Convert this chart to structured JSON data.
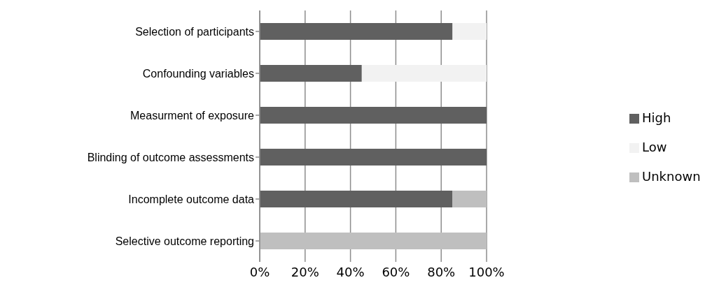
{
  "chart_data": {
    "type": "bar",
    "orientation": "horizontal",
    "stacked": true,
    "categories": [
      "Selection of participants",
      "Confounding variables",
      "Measurment of exposure",
      "Blinding of outcome assessments",
      "Incomplete outcome data",
      "Selective outcome reporting"
    ],
    "series": [
      {
        "name": "High",
        "color": "#606060",
        "values": [
          85,
          45,
          100,
          100,
          85,
          0
        ]
      },
      {
        "name": "Low",
        "color": "#f2f2f2",
        "values": [
          15,
          55,
          0,
          0,
          0,
          0
        ]
      },
      {
        "name": "Unknown",
        "color": "#bfbfbf",
        "values": [
          0,
          0,
          0,
          0,
          15,
          100
        ]
      }
    ],
    "xlim": [
      0,
      100
    ],
    "xticks": [
      {
        "value": 0,
        "label": "0%"
      },
      {
        "value": 20,
        "label": "20%"
      },
      {
        "value": 40,
        "label": "40%"
      },
      {
        "value": 60,
        "label": "60%"
      },
      {
        "value": 80,
        "label": "80%"
      },
      {
        "value": 100,
        "label": "100%"
      }
    ],
    "grid": "x",
    "legend": "right"
  }
}
